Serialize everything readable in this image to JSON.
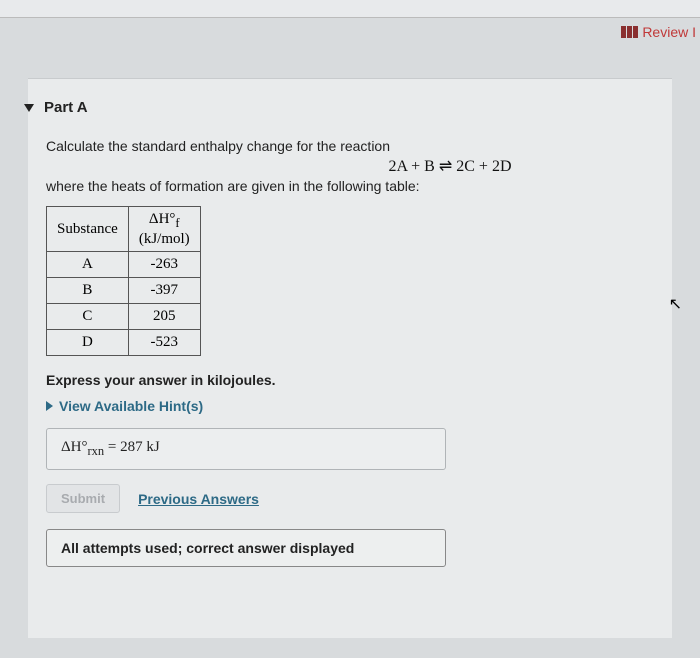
{
  "top": {
    "review_label": "Review I"
  },
  "part": {
    "label": "Part A"
  },
  "prompt": {
    "line1": "Calculate the standard enthalpy change for the reaction",
    "equation": "2A + B ⇌ 2C + 2D",
    "line2": "where the heats of formation are given in the following table:"
  },
  "table": {
    "col_substance": "Substance",
    "col_dhf_symbol": "ΔH°",
    "col_dhf_sub": "f",
    "col_dhf_units": "(kJ/mol)",
    "rows": [
      {
        "sub": "A",
        "val": "-263"
      },
      {
        "sub": "B",
        "val": "-397"
      },
      {
        "sub": "C",
        "val": "205"
      },
      {
        "sub": "D",
        "val": "-523"
      }
    ]
  },
  "express": "Express your answer in kilojoules.",
  "hints_label": "View Available Hint(s)",
  "answer": {
    "symbol": "ΔH°",
    "sub": "rxn",
    "equals": " = ",
    "value": "287",
    "unit": " kJ"
  },
  "buttons": {
    "submit": "Submit",
    "previous": "Previous Answers"
  },
  "status": "All attempts used; correct answer displayed"
}
